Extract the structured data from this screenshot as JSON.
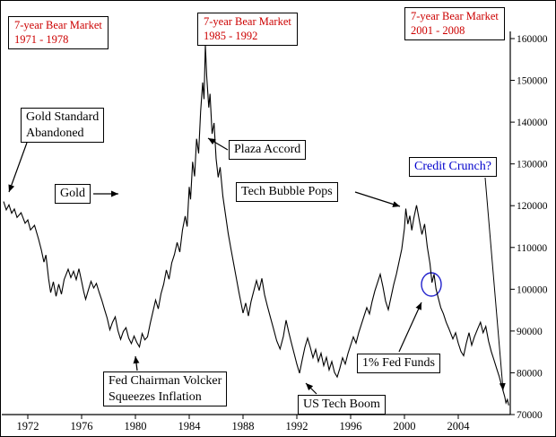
{
  "meta": {
    "accent_red": "#cc0000",
    "accent_blue": "#0000cc",
    "line_color": "#000000",
    "background": "#ffffff"
  },
  "bear_markets": [
    {
      "title": "7-year Bear Market",
      "years": "1971 - 1978"
    },
    {
      "title": "7-year Bear Market",
      "years": "1985 - 1992"
    },
    {
      "title": "7-year Bear Market",
      "years": "2001 - 2008"
    }
  ],
  "callouts": {
    "gold_standard_line1": "Gold Standard",
    "gold_standard_line2": "Abandoned",
    "gold": "Gold",
    "plaza": "Plaza Accord",
    "tech_bubble": "Tech Bubble Pops",
    "credit_crunch": "Credit Crunch?",
    "volcker_line1": "Fed Chairman Volcker",
    "volcker_line2": "Squeezes Inflation",
    "tech_boom": "US Tech Boom",
    "fed_funds": "1% Fed Funds"
  },
  "chart_data": {
    "type": "line",
    "title": "",
    "xlabel": "",
    "ylabel": "",
    "grid": false,
    "xlim": [
      1970,
      2008
    ],
    "ylim": [
      70000,
      160000
    ],
    "x_ticks": [
      1972,
      1976,
      1980,
      1984,
      1988,
      1992,
      1996,
      2000,
      2004
    ],
    "y_ticks": [
      70000,
      80000,
      90000,
      100000,
      110000,
      120000,
      130000,
      140000,
      150000,
      160000
    ],
    "annotations": [
      {
        "text": "7-year Bear Market 1971 - 1978",
        "color": "red"
      },
      {
        "text": "7-year Bear Market 1985 - 1992",
        "color": "red"
      },
      {
        "text": "7-year Bear Market 2001 - 2008",
        "color": "red"
      },
      {
        "text": "Gold Standard Abandoned",
        "target": [
          1970.3,
          121000
        ]
      },
      {
        "text": "Gold",
        "target": [
          1979,
          122500
        ]
      },
      {
        "text": "Plaza Accord",
        "target": [
          1985.5,
          140000
        ]
      },
      {
        "text": "Tech Bubble Pops",
        "target": [
          2000.1,
          119300
        ]
      },
      {
        "text": "Credit Crunch?",
        "target": [
          2007.8,
          72500
        ],
        "color": "blue"
      },
      {
        "text": "Fed Chairman Volcker Squeezes Inflation",
        "target": [
          1980.3,
          86500
        ]
      },
      {
        "text": "US Tech Boom",
        "target": [
          1992.3,
          80000
        ]
      },
      {
        "text": "1% Fed Funds",
        "target": [
          2002.05,
          101500
        ],
        "circled": true
      }
    ],
    "series": [
      {
        "name": "Gold",
        "points": [
          [
            1970.2,
            121000
          ],
          [
            1970.4,
            119000
          ],
          [
            1970.6,
            120200
          ],
          [
            1970.8,
            118200
          ],
          [
            1971.0,
            119200
          ],
          [
            1971.2,
            117200
          ],
          [
            1971.5,
            118300
          ],
          [
            1971.8,
            115800
          ],
          [
            1972.0,
            116600
          ],
          [
            1972.2,
            114200
          ],
          [
            1972.5,
            115300
          ],
          [
            1972.8,
            112000
          ],
          [
            1973.0,
            109500
          ],
          [
            1973.2,
            106500
          ],
          [
            1973.35,
            108200
          ],
          [
            1973.55,
            102500
          ],
          [
            1973.7,
            99200
          ],
          [
            1973.9,
            101800
          ],
          [
            1974.1,
            98300
          ],
          [
            1974.3,
            101200
          ],
          [
            1974.5,
            98800
          ],
          [
            1974.7,
            102300
          ],
          [
            1975.0,
            104800
          ],
          [
            1975.2,
            102800
          ],
          [
            1975.4,
            104300
          ],
          [
            1975.6,
            102300
          ],
          [
            1975.8,
            104900
          ],
          [
            1976.0,
            101900
          ],
          [
            1976.15,
            99500
          ],
          [
            1976.3,
            97600
          ],
          [
            1976.5,
            99800
          ],
          [
            1976.7,
            101900
          ],
          [
            1976.9,
            100300
          ],
          [
            1977.1,
            101400
          ],
          [
            1977.3,
            99300
          ],
          [
            1977.5,
            97400
          ],
          [
            1977.7,
            95200
          ],
          [
            1977.9,
            93100
          ],
          [
            1978.1,
            90300
          ],
          [
            1978.3,
            92100
          ],
          [
            1978.5,
            93400
          ],
          [
            1978.7,
            90100
          ],
          [
            1978.9,
            88000
          ],
          [
            1979.1,
            89900
          ],
          [
            1979.3,
            90800
          ],
          [
            1979.5,
            88300
          ],
          [
            1979.7,
            87000
          ],
          [
            1979.9,
            88800
          ],
          [
            1980.1,
            87300
          ],
          [
            1980.3,
            86200
          ],
          [
            1980.5,
            89400
          ],
          [
            1980.7,
            87900
          ],
          [
            1980.9,
            88600
          ],
          [
            1981.1,
            91800
          ],
          [
            1981.3,
            94600
          ],
          [
            1981.5,
            97400
          ],
          [
            1981.7,
            95300
          ],
          [
            1981.9,
            98900
          ],
          [
            1982.1,
            101200
          ],
          [
            1982.3,
            104600
          ],
          [
            1982.5,
            102400
          ],
          [
            1982.7,
            106300
          ],
          [
            1982.9,
            108300
          ],
          [
            1983.1,
            111200
          ],
          [
            1983.3,
            108900
          ],
          [
            1983.5,
            114200
          ],
          [
            1983.7,
            117500
          ],
          [
            1983.85,
            115000
          ],
          [
            1984.0,
            124500
          ],
          [
            1984.1,
            121500
          ],
          [
            1984.25,
            130500
          ],
          [
            1984.4,
            127000
          ],
          [
            1984.55,
            136000
          ],
          [
            1984.7,
            132500
          ],
          [
            1984.85,
            142500
          ],
          [
            1985.0,
            149500
          ],
          [
            1985.1,
            145500
          ],
          [
            1985.2,
            158500
          ],
          [
            1985.3,
            151000
          ],
          [
            1985.45,
            143500
          ],
          [
            1985.55,
            146800
          ],
          [
            1985.7,
            137200
          ],
          [
            1985.85,
            139800
          ],
          [
            1986.0,
            131200
          ],
          [
            1986.15,
            126800
          ],
          [
            1986.3,
            129200
          ],
          [
            1986.5,
            122300
          ],
          [
            1986.7,
            117800
          ],
          [
            1986.9,
            113300
          ],
          [
            1987.1,
            109700
          ],
          [
            1987.3,
            106200
          ],
          [
            1987.5,
            102700
          ],
          [
            1987.7,
            99200
          ],
          [
            1987.85,
            96800
          ],
          [
            1988.0,
            94300
          ],
          [
            1988.2,
            96700
          ],
          [
            1988.4,
            93600
          ],
          [
            1988.6,
            97100
          ],
          [
            1988.8,
            99600
          ],
          [
            1989.0,
            102100
          ],
          [
            1989.2,
            99700
          ],
          [
            1989.4,
            102600
          ],
          [
            1989.6,
            98700
          ],
          [
            1989.8,
            96100
          ],
          [
            1990.0,
            93700
          ],
          [
            1990.25,
            90700
          ],
          [
            1990.5,
            87700
          ],
          [
            1990.75,
            85700
          ],
          [
            1991.0,
            88700
          ],
          [
            1991.2,
            92600
          ],
          [
            1991.4,
            89700
          ],
          [
            1991.6,
            87100
          ],
          [
            1991.8,
            84600
          ],
          [
            1992.0,
            82100
          ],
          [
            1992.2,
            79900
          ],
          [
            1992.4,
            83100
          ],
          [
            1992.6,
            86100
          ],
          [
            1992.8,
            88300
          ],
          [
            1993.0,
            86100
          ],
          [
            1993.2,
            83600
          ],
          [
            1993.4,
            85600
          ],
          [
            1993.6,
            82700
          ],
          [
            1993.8,
            84700
          ],
          [
            1994.0,
            81700
          ],
          [
            1994.2,
            83700
          ],
          [
            1994.4,
            80700
          ],
          [
            1994.6,
            82700
          ],
          [
            1994.8,
            80100
          ],
          [
            1995.0,
            79000
          ],
          [
            1995.2,
            81100
          ],
          [
            1995.4,
            83600
          ],
          [
            1995.6,
            82100
          ],
          [
            1995.8,
            84600
          ],
          [
            1996.0,
            86600
          ],
          [
            1996.2,
            88600
          ],
          [
            1996.4,
            87100
          ],
          [
            1996.6,
            89600
          ],
          [
            1996.8,
            91600
          ],
          [
            1997.0,
            93600
          ],
          [
            1997.2,
            95600
          ],
          [
            1997.4,
            94100
          ],
          [
            1997.6,
            97100
          ],
          [
            1997.8,
            99600
          ],
          [
            1998.0,
            101600
          ],
          [
            1998.2,
            103600
          ],
          [
            1998.4,
            100600
          ],
          [
            1998.6,
            97100
          ],
          [
            1998.8,
            95100
          ],
          [
            1999.0,
            98100
          ],
          [
            1999.2,
            101100
          ],
          [
            1999.4,
            103600
          ],
          [
            1999.6,
            106600
          ],
          [
            1999.8,
            109600
          ],
          [
            2000.0,
            114600
          ],
          [
            2000.1,
            119300
          ],
          [
            2000.25,
            115600
          ],
          [
            2000.4,
            117600
          ],
          [
            2000.55,
            114100
          ],
          [
            2000.7,
            117100
          ],
          [
            2000.9,
            120100
          ],
          [
            2001.1,
            116600
          ],
          [
            2001.3,
            113100
          ],
          [
            2001.5,
            115600
          ],
          [
            2001.7,
            110100
          ],
          [
            2001.9,
            106100
          ],
          [
            2002.05,
            101600
          ],
          [
            2002.2,
            103600
          ],
          [
            2002.35,
            100100
          ],
          [
            2002.5,
            98100
          ],
          [
            2002.7,
            95600
          ],
          [
            2002.9,
            94100
          ],
          [
            2003.1,
            92100
          ],
          [
            2003.3,
            90600
          ],
          [
            2003.6,
            88100
          ],
          [
            2003.8,
            89600
          ],
          [
            2004.0,
            87100
          ],
          [
            2004.2,
            85100
          ],
          [
            2004.4,
            84100
          ],
          [
            2004.6,
            87100
          ],
          [
            2004.8,
            89600
          ],
          [
            2005.0,
            86600
          ],
          [
            2005.2,
            88600
          ],
          [
            2005.45,
            90600
          ],
          [
            2005.65,
            92100
          ],
          [
            2005.85,
            89600
          ],
          [
            2006.05,
            91100
          ],
          [
            2006.25,
            87600
          ],
          [
            2006.45,
            85100
          ],
          [
            2006.65,
            83100
          ],
          [
            2006.85,
            81100
          ],
          [
            2007.05,
            79100
          ],
          [
            2007.25,
            76600
          ],
          [
            2007.45,
            74300
          ],
          [
            2007.55,
            72800
          ],
          [
            2007.65,
            73600
          ],
          [
            2007.75,
            72200
          ]
        ]
      }
    ]
  }
}
